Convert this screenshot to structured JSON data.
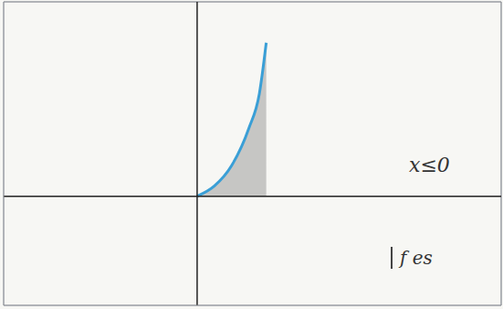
{
  "chart_data": {
    "type": "area",
    "x": [
      0,
      0.5,
      1,
      1.5,
      1.8,
      2
    ],
    "values": [
      0,
      0.3,
      0.9,
      2.0,
      3.0,
      4.5
    ],
    "color": "#3a9fd6",
    "xlim": [
      -5.6,
      8.8
    ],
    "ylim": [
      -3.2,
      5.7
    ],
    "xticks": [
      -5,
      -4,
      -3,
      -2,
      -1,
      0,
      1,
      2,
      3,
      4,
      5,
      6,
      7,
      8
    ],
    "yticks": [
      -3,
      -2,
      -1,
      0,
      1,
      2,
      3,
      4,
      5
    ],
    "grid": true,
    "tick_labels": false,
    "annotations": [
      "x≤0",
      "f es"
    ]
  }
}
